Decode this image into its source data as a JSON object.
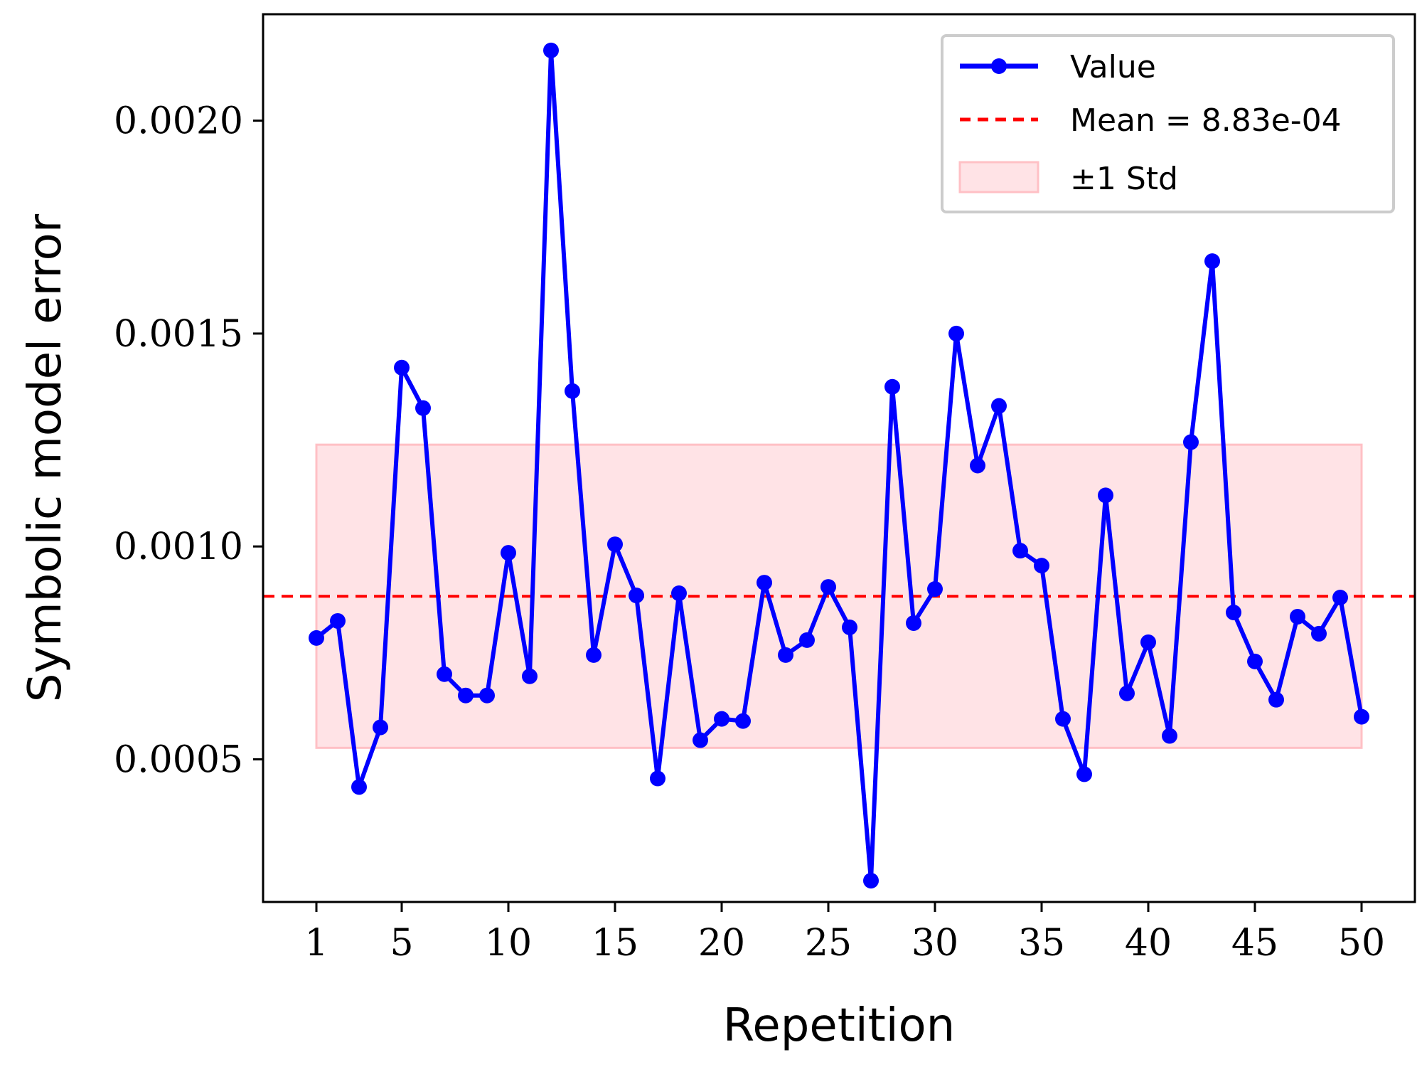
{
  "chart_data": {
    "type": "line",
    "xlabel": "Repetition",
    "ylabel": "Symbolic model error",
    "xlim": [
      -1.5,
      52.5
    ],
    "ylim": [
      0.000165,
      0.00225
    ],
    "x_ticks": [
      1,
      5,
      10,
      15,
      20,
      25,
      30,
      35,
      40,
      45,
      50
    ],
    "x_tick_labels": [
      "1",
      "5",
      "10",
      "15",
      "20",
      "25",
      "30",
      "35",
      "40",
      "45",
      "50"
    ],
    "y_ticks": [
      0.0005,
      0.001,
      0.0015,
      0.002
    ],
    "y_tick_labels": [
      "0.0005",
      "0.0010",
      "0.0015",
      "0.0020"
    ],
    "grid": false,
    "legend_position": "top-right",
    "series": [
      {
        "name": "Value",
        "color": "#0000ff",
        "x": [
          1,
          2,
          3,
          4,
          5,
          6,
          7,
          8,
          9,
          10,
          11,
          12,
          13,
          14,
          15,
          16,
          17,
          18,
          19,
          20,
          21,
          22,
          23,
          24,
          25,
          26,
          27,
          28,
          29,
          30,
          31,
          32,
          33,
          34,
          35,
          36,
          37,
          38,
          39,
          40,
          41,
          42,
          43,
          44,
          45,
          46,
          47,
          48,
          49,
          50
        ],
        "values": [
          0.000785,
          0.000825,
          0.000435,
          0.000575,
          0.00142,
          0.001325,
          0.0007,
          0.00065,
          0.00065,
          0.000985,
          0.000695,
          0.002165,
          0.001365,
          0.000745,
          0.001005,
          0.000885,
          0.000455,
          0.00089,
          0.000545,
          0.000595,
          0.00059,
          0.000915,
          0.000745,
          0.00078,
          0.000905,
          0.00081,
          0.000215,
          0.001375,
          0.00082,
          0.0009,
          0.0015,
          0.00119,
          0.00133,
          0.00099,
          0.000955,
          0.000595,
          0.000465,
          0.00112,
          0.000655,
          0.000775,
          0.000555,
          0.001245,
          0.00167,
          0.000845,
          0.00073,
          0.00064,
          0.000835,
          0.000795,
          0.00088,
          0.0006
        ]
      }
    ],
    "mean": {
      "value": 0.000883,
      "label": "Mean = 8.83e-04",
      "color": "#ff0000"
    },
    "std_band": {
      "lower": 0.000527,
      "upper": 0.001239,
      "x_range": [
        1,
        50
      ],
      "label": "±1 Std",
      "color": "#ffc0c5"
    }
  }
}
